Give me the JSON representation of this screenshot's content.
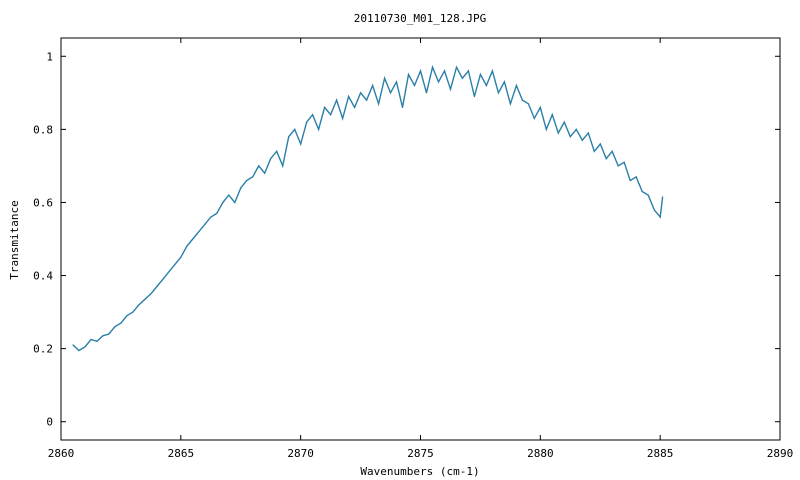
{
  "chart_data": {
    "type": "line",
    "title": "20110730_M01_128.JPG",
    "xlabel": "Wavenumbers (cm-1)",
    "ylabel": "Transmitance",
    "xlim": [
      2860,
      2890
    ],
    "ylim": [
      -0.05,
      1.05
    ],
    "xticks": [
      2860,
      2865,
      2870,
      2875,
      2880,
      2885,
      2890
    ],
    "yticks": [
      0,
      0.2,
      0.4,
      0.6,
      0.8,
      1
    ],
    "xtick_labels": [
      "2860",
      "2865",
      "2870",
      "2875",
      "2880",
      "2885",
      "2890"
    ],
    "ytick_labels": [
      "0",
      "0.2",
      "0.4",
      "0.6",
      "0.8",
      "1"
    ],
    "grid": false,
    "line_color": "#2a7fa8",
    "series": [
      {
        "x": [
          2860.5,
          2860.75,
          2861.0,
          2861.25,
          2861.5,
          2861.75,
          2862.0,
          2862.25,
          2862.5,
          2862.75,
          2863.0,
          2863.25,
          2863.5,
          2863.75,
          2864.0,
          2864.25,
          2864.5,
          2864.75,
          2865.0,
          2865.25,
          2865.5,
          2865.75,
          2866.0,
          2866.25,
          2866.5,
          2866.75,
          2867.0,
          2867.25,
          2867.5,
          2867.75,
          2868.0,
          2868.25,
          2868.5,
          2868.75,
          2869.0,
          2869.25,
          2869.5,
          2869.75,
          2870.0,
          2870.25,
          2870.5,
          2870.75,
          2871.0,
          2871.25,
          2871.5,
          2871.75,
          2872.0,
          2872.25,
          2872.5,
          2872.75,
          2873.0,
          2873.25,
          2873.5,
          2873.75,
          2874.0,
          2874.25,
          2874.5,
          2874.75,
          2875.0,
          2875.25,
          2875.5,
          2875.75,
          2876.0,
          2876.25,
          2876.5,
          2876.75,
          2877.0,
          2877.25,
          2877.5,
          2877.75,
          2878.0,
          2878.25,
          2878.5,
          2878.75,
          2879.0,
          2879.25,
          2879.5,
          2879.75,
          2880.0,
          2880.25,
          2880.5,
          2880.75,
          2881.0,
          2881.25,
          2881.5,
          2881.75,
          2882.0,
          2882.25,
          2882.5,
          2882.75,
          2883.0,
          2883.25,
          2883.5,
          2883.75,
          2884.0,
          2884.25,
          2884.5,
          2884.75,
          2885.0,
          2885.1
        ],
        "y": [
          0.21,
          0.195,
          0.205,
          0.225,
          0.22,
          0.235,
          0.24,
          0.26,
          0.27,
          0.29,
          0.3,
          0.32,
          0.335,
          0.35,
          0.37,
          0.39,
          0.41,
          0.43,
          0.45,
          0.48,
          0.5,
          0.52,
          0.54,
          0.56,
          0.57,
          0.6,
          0.62,
          0.6,
          0.64,
          0.66,
          0.67,
          0.7,
          0.68,
          0.72,
          0.74,
          0.7,
          0.78,
          0.8,
          0.76,
          0.82,
          0.84,
          0.8,
          0.86,
          0.84,
          0.88,
          0.83,
          0.89,
          0.86,
          0.9,
          0.88,
          0.92,
          0.87,
          0.94,
          0.9,
          0.93,
          0.86,
          0.95,
          0.92,
          0.96,
          0.9,
          0.97,
          0.93,
          0.96,
          0.91,
          0.97,
          0.94,
          0.96,
          0.89,
          0.95,
          0.92,
          0.96,
          0.9,
          0.93,
          0.87,
          0.92,
          0.88,
          0.87,
          0.83,
          0.86,
          0.8,
          0.84,
          0.79,
          0.82,
          0.78,
          0.8,
          0.77,
          0.79,
          0.74,
          0.76,
          0.72,
          0.74,
          0.7,
          0.71,
          0.66,
          0.67,
          0.63,
          0.62,
          0.58,
          0.56,
          0.615
        ]
      }
    ]
  }
}
